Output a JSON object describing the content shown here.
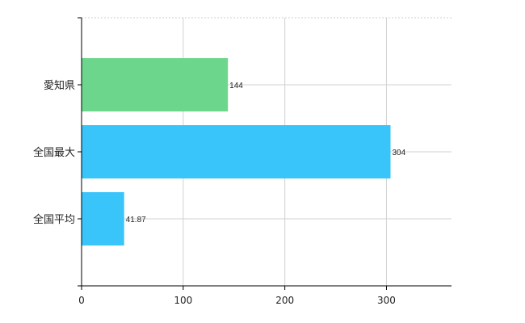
{
  "chart_data": {
    "type": "bar",
    "orientation": "horizontal",
    "categories": [
      "愛知県",
      "全国最大",
      "全国平均"
    ],
    "values": [
      144,
      304,
      41.87
    ],
    "value_labels": [
      "144",
      "304",
      "41.87"
    ],
    "bar_colors": [
      "#6dd68d",
      "#39c4fa",
      "#39c4fa"
    ],
    "xlim": [
      0,
      364
    ],
    "xticks": [
      0,
      100,
      200,
      300
    ],
    "title": "",
    "xlabel": "",
    "ylabel": "",
    "grid": true,
    "legend": "none"
  }
}
